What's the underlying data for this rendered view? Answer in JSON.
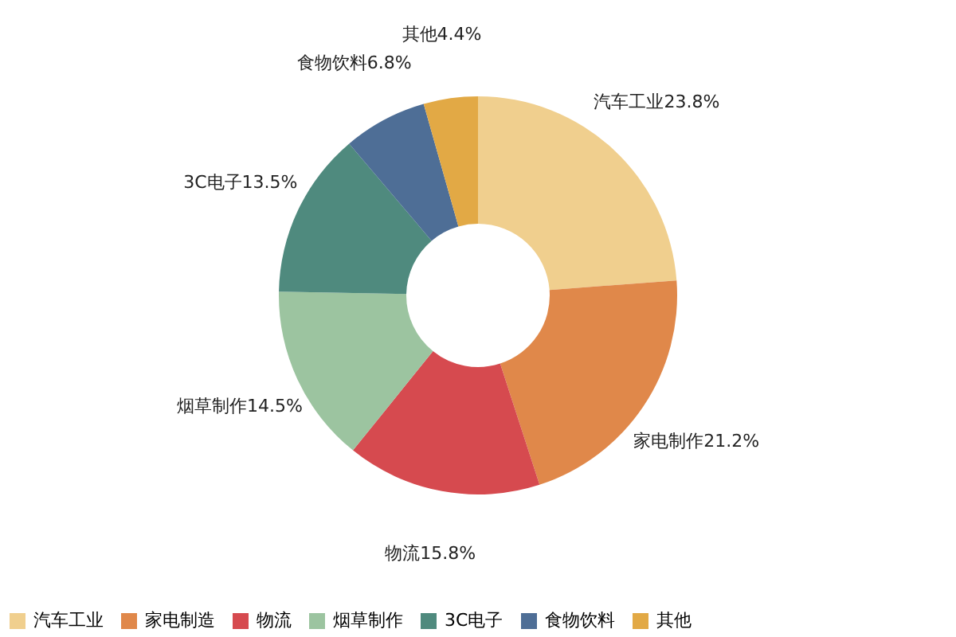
{
  "chart_data": {
    "type": "donut",
    "categories": [
      "汽车工业",
      "家电制造",
      "物流",
      "烟草制作",
      "3C电子",
      "食物饮料",
      "其他"
    ],
    "values": [
      23.8,
      21.2,
      15.8,
      14.5,
      13.5,
      6.8,
      4.4
    ],
    "colors": [
      "#f0cf8e",
      "#e0884a",
      "#d64a4f",
      "#9cc4a0",
      "#4f8a7e",
      "#4e6e96",
      "#e2a945"
    ],
    "value_labels": [
      "汽车工业23.8%",
      "家电制作21.2%",
      "物流15.8%",
      "烟草制作14.5%",
      "3C电子13.5%",
      "食物饮料6.8%",
      "其他4.4%"
    ],
    "legend": "bottom"
  }
}
